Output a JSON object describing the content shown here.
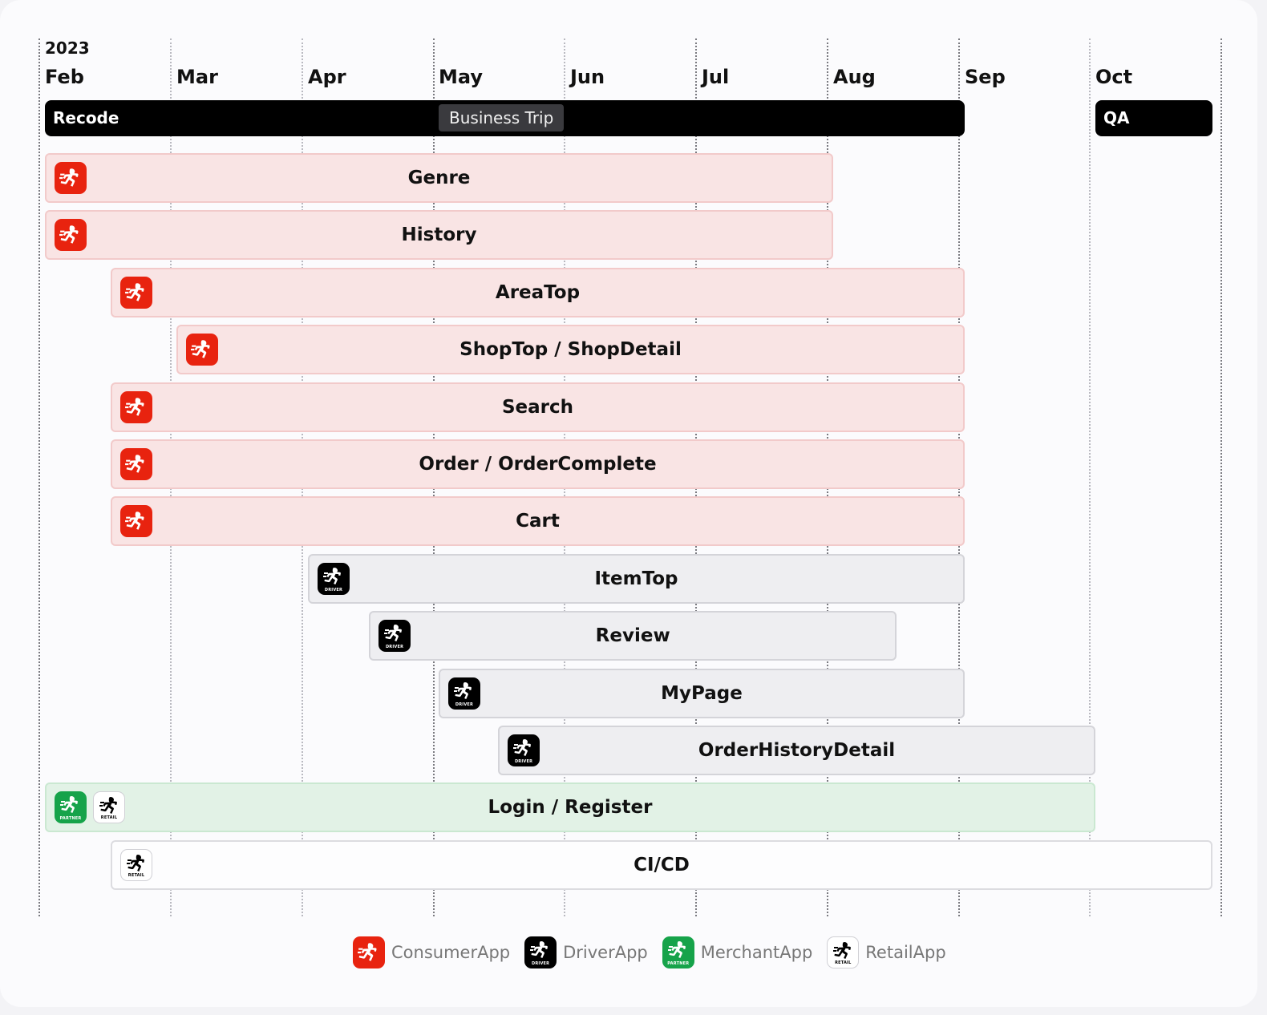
{
  "chart_data": {
    "type": "gantt",
    "year": "2023",
    "months": [
      "Feb",
      "Mar",
      "Apr",
      "May",
      "Jun",
      "Jul",
      "Aug",
      "Sep",
      "Oct"
    ],
    "phases": [
      {
        "label": "Recode",
        "start": "2023-02-01",
        "end": "2023-08-31",
        "tag": "Business Trip",
        "tag_date": "2023-05-01"
      },
      {
        "label": "QA",
        "start": "2023-10-01",
        "end": "2023-10-31"
      }
    ],
    "tasks": [
      {
        "name": "Genre",
        "start": "2023-02-01",
        "end": "2023-07-31",
        "apps": [
          "consumer"
        ]
      },
      {
        "name": "History",
        "start": "2023-02-01",
        "end": "2023-07-31",
        "apps": [
          "consumer"
        ]
      },
      {
        "name": "AreaTop",
        "start": "2023-02-15",
        "end": "2023-08-31",
        "apps": [
          "consumer"
        ]
      },
      {
        "name": "ShopTop / ShopDetail",
        "start": "2023-03-01",
        "end": "2023-08-31",
        "apps": [
          "consumer"
        ]
      },
      {
        "name": "Search",
        "start": "2023-02-15",
        "end": "2023-08-31",
        "apps": [
          "consumer"
        ]
      },
      {
        "name": "Order / OrderComplete",
        "start": "2023-02-15",
        "end": "2023-08-31",
        "apps": [
          "consumer"
        ]
      },
      {
        "name": "Cart",
        "start": "2023-02-15",
        "end": "2023-08-31",
        "apps": [
          "consumer"
        ]
      },
      {
        "name": "ItemTop",
        "start": "2023-04-01",
        "end": "2023-08-31",
        "apps": [
          "driver"
        ]
      },
      {
        "name": "Review",
        "start": "2023-04-15",
        "end": "2023-08-15",
        "apps": [
          "driver"
        ]
      },
      {
        "name": "MyPage",
        "start": "2023-05-01",
        "end": "2023-08-31",
        "apps": [
          "driver"
        ]
      },
      {
        "name": "OrderHistoryDetail",
        "start": "2023-05-15",
        "end": "2023-09-30",
        "apps": [
          "driver"
        ]
      },
      {
        "name": "Login / Register",
        "start": "2023-02-01",
        "end": "2023-09-30",
        "apps": [
          "merchant",
          "retail"
        ]
      },
      {
        "name": "CI/CD",
        "start": "2023-02-15",
        "end": "2023-10-31",
        "apps": [
          "retail"
        ]
      }
    ],
    "legend": [
      {
        "key": "consumer",
        "label": "ConsumerApp"
      },
      {
        "key": "driver",
        "label": "DriverApp"
      },
      {
        "key": "merchant",
        "label": "MerchantApp"
      },
      {
        "key": "retail",
        "label": "RetailApp"
      }
    ],
    "app_sublabels": {
      "consumer": "",
      "driver": "DRIVER",
      "merchant": "PARTNER",
      "retail": "RETAIL"
    },
    "colors": {
      "consumer": "#e8230f",
      "consumer_bar": "#f9e4e4",
      "driver": "#000000",
      "driver_bar": "#eeeef1",
      "merchant": "#16a34a",
      "merchant_bar": "#e2f2e6",
      "retail": "#ffffff",
      "retail_bar": "#fdfdfe",
      "phase": "#000000"
    }
  }
}
